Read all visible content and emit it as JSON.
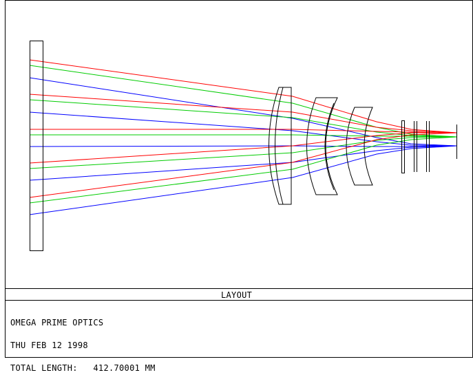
{
  "caption": "LAYOUT",
  "info": {
    "company": "OMEGA PRIME OPTICS",
    "date": "THU FEB 12 1998",
    "total_length": "TOTAL LENGTH:   412.70001 MM"
  },
  "ray_colors": [
    "#ff0000",
    "#00cc00",
    "#0000ff"
  ]
}
